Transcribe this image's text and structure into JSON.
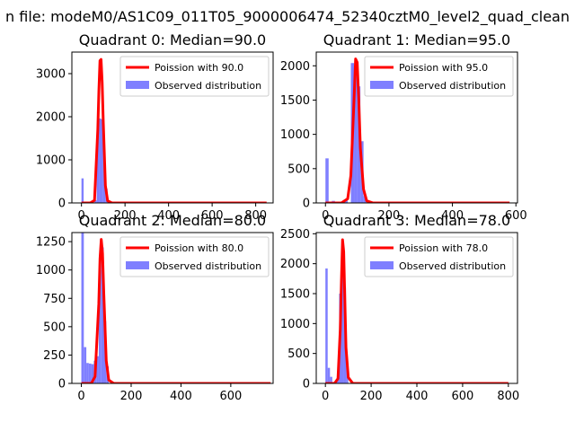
{
  "figure": {
    "suptitle": "n file: modeM0/AS1C09_011T05_9000006474_52340cztM0_level2_quad_clean"
  },
  "colors": {
    "fit_line": "#ff0000",
    "histogram": "#7f7fff",
    "axes": "#000000"
  },
  "chart_data": [
    {
      "type": "bar",
      "title": "Quadrant 0: Median=90.0",
      "xlabel": "",
      "ylabel": "",
      "xlim": [
        -44,
        880
      ],
      "ylim": [
        0,
        3500
      ],
      "xticks": [
        0,
        200,
        400,
        600,
        800
      ],
      "yticks": [
        0,
        1000,
        2000,
        3000
      ],
      "legend": {
        "position": "top-right",
        "entries": [
          "Poission with 90.0",
          "Observed distribution"
        ]
      },
      "histogram": {
        "name": "Observed distribution",
        "bin_width": 10,
        "bins": [
          {
            "x": 0,
            "count": 570
          },
          {
            "x": 60,
            "count": 60
          },
          {
            "x": 70,
            "count": 1830
          },
          {
            "x": 80,
            "count": 1960
          },
          {
            "x": 90,
            "count": 1940
          },
          {
            "x": 100,
            "count": 1050
          },
          {
            "x": 110,
            "count": 330
          },
          {
            "x": 120,
            "count": 60
          }
        ]
      },
      "fit": {
        "name": "Poission with 90.0",
        "x": [
          0,
          40,
          60,
          75,
          80,
          85,
          90,
          95,
          100,
          110,
          120,
          140,
          200,
          850
        ],
        "y": [
          0,
          0,
          60,
          1700,
          2600,
          3300,
          3330,
          2800,
          1900,
          400,
          50,
          0,
          0,
          0
        ]
      }
    },
    {
      "type": "bar",
      "title": "Quadrant 1: Median=95.0",
      "xlabel": "",
      "ylabel": "",
      "xlim": [
        -29,
        605
      ],
      "ylim": [
        0,
        2200
      ],
      "xticks": [
        0,
        200,
        400,
        600
      ],
      "yticks": [
        0,
        500,
        1000,
        1500,
        2000
      ],
      "legend": {
        "position": "top-right",
        "entries": [
          "Poission with 95.0",
          "Observed distribution"
        ]
      },
      "histogram": {
        "name": "Observed distribution",
        "bin_width": 10,
        "bins": [
          {
            "x": 0,
            "count": 650
          },
          {
            "x": 20,
            "count": 30
          },
          {
            "x": 60,
            "count": 50
          },
          {
            "x": 80,
            "count": 2040
          },
          {
            "x": 90,
            "count": 1900
          },
          {
            "x": 100,
            "count": 1700
          },
          {
            "x": 110,
            "count": 900
          },
          {
            "x": 120,
            "count": 100
          }
        ]
      },
      "fit": {
        "name": "Poission with 95.0",
        "x": [
          0,
          50,
          70,
          80,
          90,
          95,
          100,
          105,
          110,
          120,
          130,
          150,
          200,
          580
        ],
        "y": [
          0,
          0,
          60,
          400,
          1500,
          2100,
          2050,
          1500,
          800,
          200,
          30,
          0,
          0,
          0
        ]
      }
    },
    {
      "type": "bar",
      "title": "Quadrant 2: Median=80.0",
      "xlabel": "",
      "ylabel": "",
      "xlim": [
        -38,
        770
      ],
      "ylim": [
        0,
        1330
      ],
      "xticks": [
        0,
        200,
        400,
        600
      ],
      "yticks": [
        0,
        250,
        500,
        750,
        1000,
        1250
      ],
      "legend": {
        "position": "top-right",
        "entries": [
          "Poission with 80.0",
          "Observed distribution"
        ]
      },
      "histogram": {
        "name": "Observed distribution",
        "bin_width": 10,
        "bins": [
          {
            "x": 0,
            "count": 1340
          },
          {
            "x": 10,
            "count": 320
          },
          {
            "x": 20,
            "count": 180
          },
          {
            "x": 30,
            "count": 175
          },
          {
            "x": 40,
            "count": 170
          },
          {
            "x": 50,
            "count": 200
          },
          {
            "x": 60,
            "count": 240
          },
          {
            "x": 70,
            "count": 1000
          },
          {
            "x": 80,
            "count": 1200
          },
          {
            "x": 90,
            "count": 550
          },
          {
            "x": 100,
            "count": 150
          }
        ]
      },
      "fit": {
        "name": "Poission with 80.0",
        "x": [
          0,
          40,
          55,
          70,
          75,
          80,
          85,
          90,
          100,
          110,
          130,
          200,
          760
        ],
        "y": [
          0,
          0,
          60,
          700,
          1100,
          1270,
          1150,
          800,
          200,
          30,
          0,
          0,
          0
        ]
      }
    },
    {
      "type": "bar",
      "title": "Quadrant 3: Median=78.0",
      "xlabel": "",
      "ylabel": "",
      "xlim": [
        -40,
        840
      ],
      "ylim": [
        0,
        2520
      ],
      "xticks": [
        0,
        200,
        400,
        600,
        800
      ],
      "yticks": [
        0,
        500,
        1000,
        1500,
        2000,
        2500
      ],
      "legend": {
        "position": "top-right",
        "entries": [
          "Poission with 78.0",
          "Observed distribution"
        ]
      },
      "histogram": {
        "name": "Observed distribution",
        "bin_width": 10,
        "bins": [
          {
            "x": 0,
            "count": 1920
          },
          {
            "x": 10,
            "count": 260
          },
          {
            "x": 20,
            "count": 110
          },
          {
            "x": 50,
            "count": 100
          },
          {
            "x": 60,
            "count": 1500
          },
          {
            "x": 70,
            "count": 2350
          },
          {
            "x": 80,
            "count": 1600
          },
          {
            "x": 90,
            "count": 300
          }
        ]
      },
      "fit": {
        "name": "Poission with 78.0",
        "x": [
          0,
          40,
          55,
          65,
          70,
          75,
          80,
          85,
          90,
          100,
          120,
          200,
          800
        ],
        "y": [
          0,
          0,
          80,
          900,
          1700,
          2400,
          2200,
          1400,
          600,
          100,
          0,
          0,
          0
        ]
      }
    }
  ]
}
